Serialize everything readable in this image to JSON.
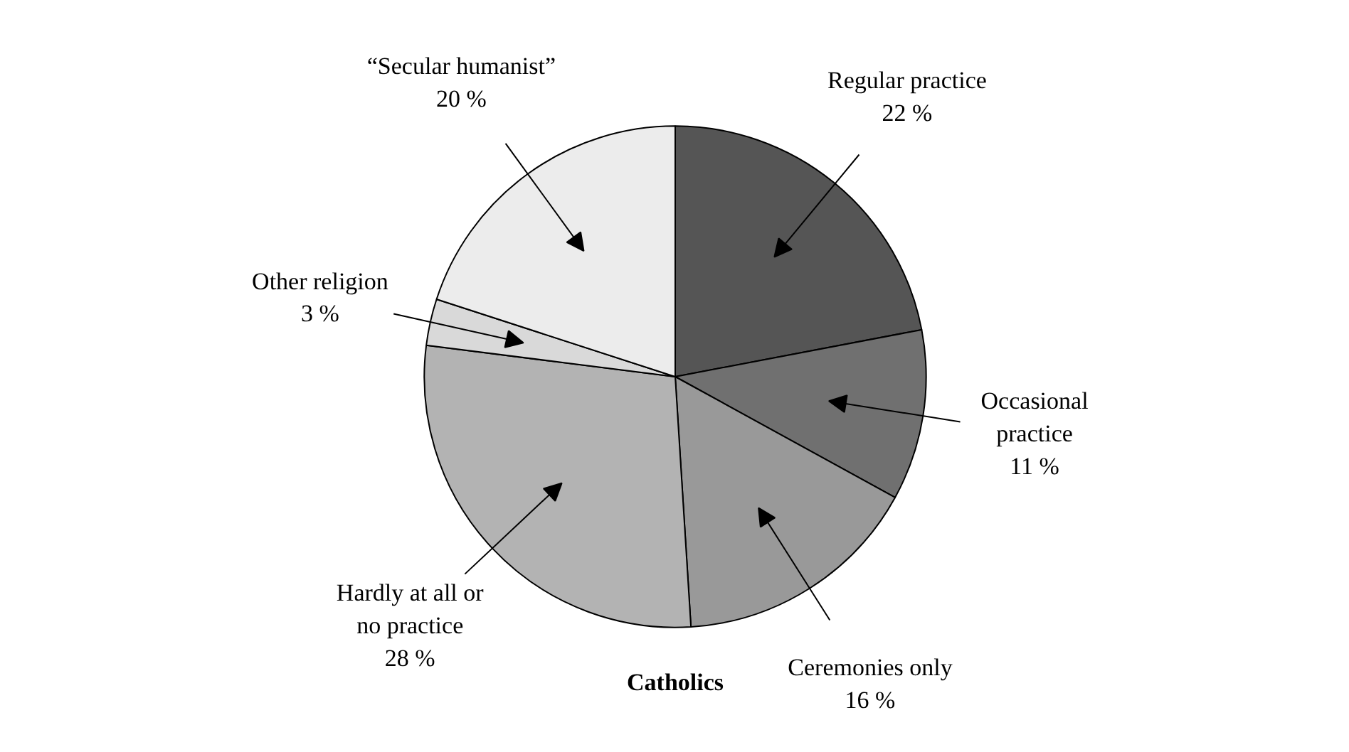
{
  "chart_data": {
    "type": "pie",
    "categories": [
      "Regular practice",
      "Occasional practice",
      "Ceremonies only",
      "Hardly at all or no practice",
      "Other religion",
      "“Secular humanist”"
    ],
    "values": [
      22,
      11,
      16,
      28,
      3,
      20
    ],
    "value_labels": [
      "22 %",
      "11 %",
      "16 %",
      "28 %",
      "3 %",
      "20 %"
    ],
    "colors": [
      "#555555",
      "#707070",
      "#999999",
      "#b3b3b3",
      "#d9d9d9",
      "#ececec"
    ],
    "annotations": [
      "Catholics"
    ]
  }
}
